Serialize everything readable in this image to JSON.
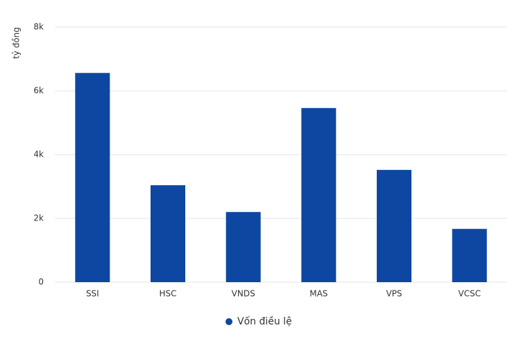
{
  "chart_data": {
    "type": "bar",
    "y_label": "tỷ đồng",
    "categories": [
      "SSI",
      "HSC",
      "VNDS",
      "MAS",
      "VPS",
      "VCSC"
    ],
    "series": [
      {
        "name": "Vốn điều lệ",
        "color": "#0d47a1",
        "values": [
          6560,
          3040,
          2200,
          5460,
          3520,
          1670
        ]
      }
    ],
    "ylim": [
      0,
      8000
    ],
    "yticks": [
      0,
      {
        "value": 2000,
        "label": "2k"
      },
      {
        "value": 4000,
        "label": "4k"
      },
      {
        "value": 6000,
        "label": "6k"
      },
      {
        "value": 8000,
        "label": "8k"
      }
    ],
    "grid": true,
    "legend": "bottom"
  }
}
